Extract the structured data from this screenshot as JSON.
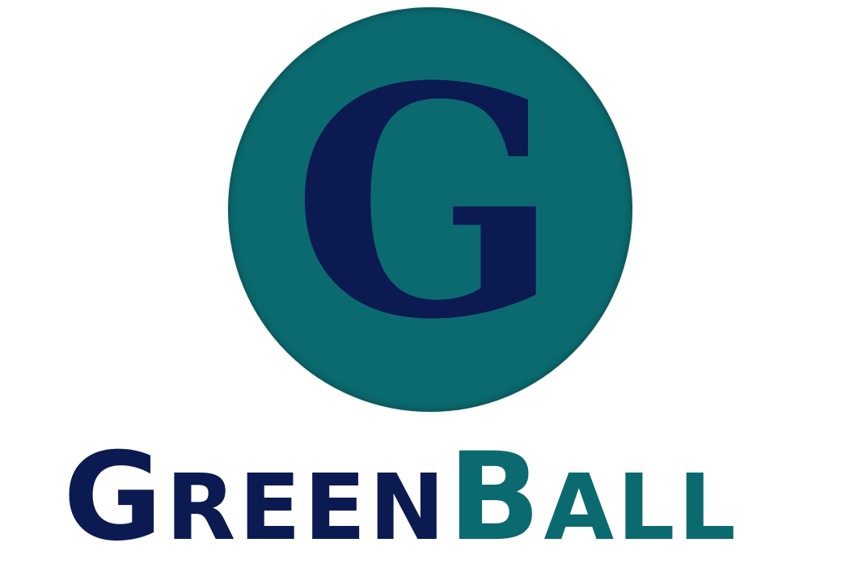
{
  "logo": {
    "letter": "G",
    "wordmark_part1_initial": "G",
    "wordmark_part1_rest": "REEN",
    "wordmark_part2_initial": "B",
    "wordmark_part2_rest": "ALL",
    "ball_color": "#0B6A6F",
    "letter_color": "#0C1A52",
    "part1_color": "#0C1A52",
    "part2_color": "#0B6A6F"
  }
}
